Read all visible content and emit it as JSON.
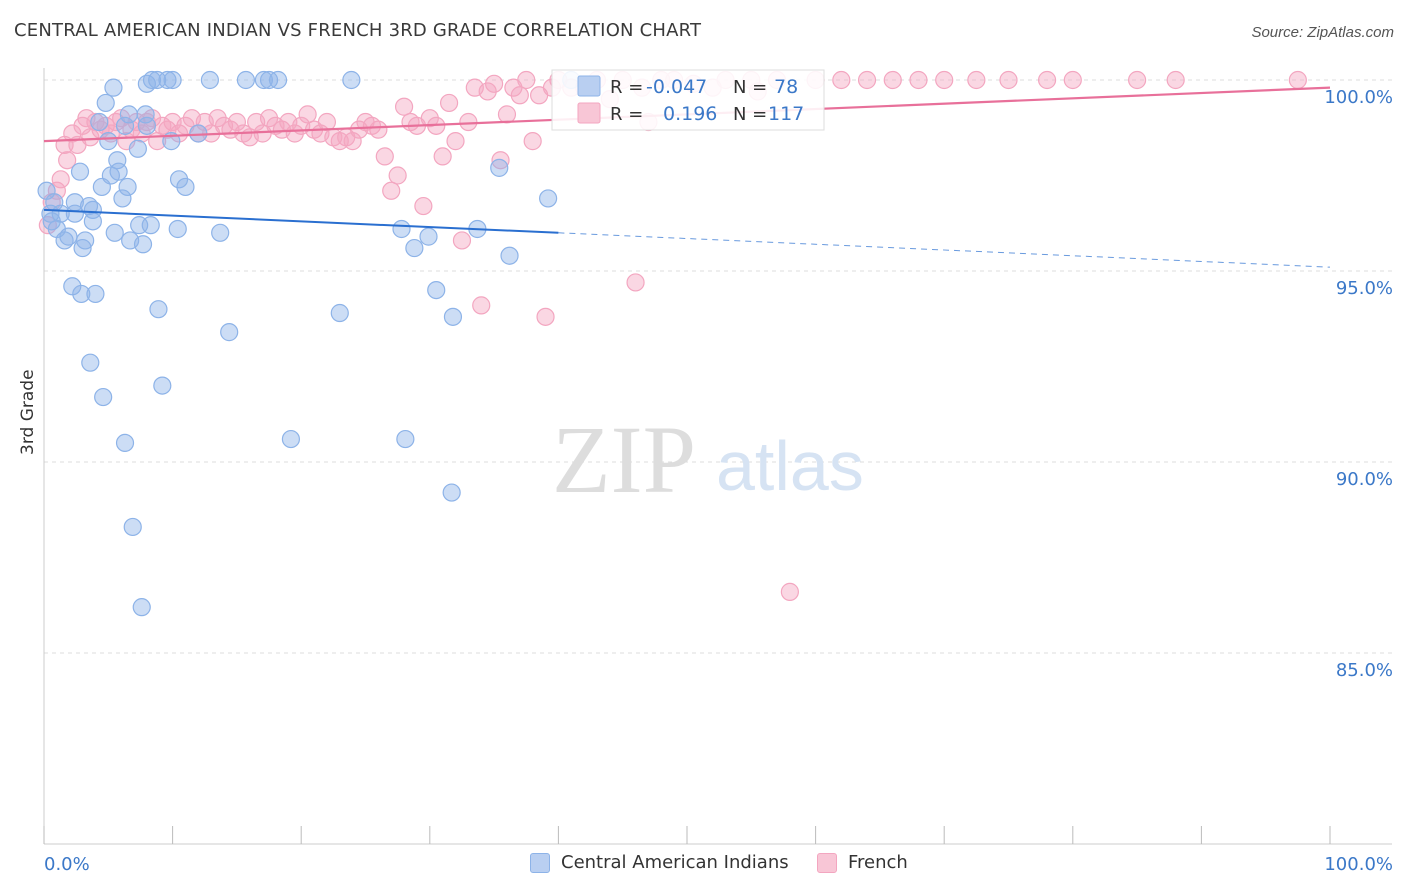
{
  "title": "CENTRAL AMERICAN INDIAN VS FRENCH 3RD GRADE CORRELATION CHART",
  "source": "Source: ZipAtlas.com",
  "watermark": {
    "zip": "ZIP",
    "atlas": "atlas"
  },
  "colors": {
    "blue": "#8db3e8",
    "blue_line": "#2a6fd0",
    "pink": "#f3a6c0",
    "pink_line": "#e8709a",
    "axis_text": "#3b78c8",
    "grid": "#dcdcdc"
  },
  "legend_box": {
    "r_label": "R =",
    "n_label": "N =",
    "blue": {
      "r": "-0.047",
      "n": "78"
    },
    "pink": {
      "r": "0.196",
      "n": "117"
    }
  },
  "bottom_legend": {
    "blue": "Central American Indians",
    "pink": "French"
  },
  "chart_data": {
    "type": "scatter",
    "title": "CENTRAL AMERICAN INDIAN VS FRENCH 3RD GRADE CORRELATION CHART",
    "xlabel": "",
    "ylabel": "3rd Grade",
    "x_tick_labels": [
      "0.0%",
      "100.0%"
    ],
    "y_tick_labels": [
      "100.0%",
      "95.0%",
      "90.0%",
      "85.0%"
    ],
    "y_ticks": [
      100,
      95,
      90,
      85
    ],
    "xlim": [
      0,
      100
    ],
    "ylim": [
      80,
      100.4
    ],
    "grid": true,
    "legend_position": "top-center",
    "series": [
      {
        "name": "Central American Indians",
        "r": -0.047,
        "n": 78,
        "trend": {
          "x0": 0,
          "y0": 96.6,
          "x1": 40,
          "y1": 96.0,
          "dashed_to_x": 100,
          "dashed_y1": 95.1
        },
        "points": [
          [
            0.2,
            97.1
          ],
          [
            0.5,
            96.5
          ],
          [
            0.6,
            96.3
          ],
          [
            0.8,
            96.8
          ],
          [
            1.0,
            96.1
          ],
          [
            1.3,
            96.5
          ],
          [
            1.6,
            95.8
          ],
          [
            1.9,
            95.9
          ],
          [
            2.2,
            94.6
          ],
          [
            2.4,
            96.8
          ],
          [
            2.4,
            96.5
          ],
          [
            2.8,
            97.6
          ],
          [
            2.9,
            94.4
          ],
          [
            3.0,
            95.6
          ],
          [
            3.2,
            95.8
          ],
          [
            3.5,
            96.7
          ],
          [
            3.6,
            92.6
          ],
          [
            3.8,
            96.6
          ],
          [
            3.8,
            96.3
          ],
          [
            4.0,
            94.4
          ],
          [
            4.3,
            98.9
          ],
          [
            4.5,
            97.2
          ],
          [
            4.6,
            91.7
          ],
          [
            4.8,
            99.4
          ],
          [
            5.0,
            98.4
          ],
          [
            5.2,
            97.5
          ],
          [
            5.4,
            99.8
          ],
          [
            5.5,
            96.0
          ],
          [
            5.7,
            97.9
          ],
          [
            5.8,
            97.6
          ],
          [
            6.1,
            96.9
          ],
          [
            6.3,
            90.5
          ],
          [
            6.3,
            98.8
          ],
          [
            6.5,
            97.2
          ],
          [
            6.6,
            99.1
          ],
          [
            6.7,
            95.8
          ],
          [
            6.9,
            88.3
          ],
          [
            7.3,
            98.2
          ],
          [
            7.4,
            96.2
          ],
          [
            7.6,
            86.2
          ],
          [
            7.7,
            95.7
          ],
          [
            7.9,
            99.1
          ],
          [
            8.0,
            98.8
          ],
          [
            8.0,
            99.9
          ],
          [
            8.3,
            96.2
          ],
          [
            8.4,
            100.0
          ],
          [
            8.8,
            100.0
          ],
          [
            8.9,
            94.0
          ],
          [
            9.2,
            92.0
          ],
          [
            9.6,
            100.0
          ],
          [
            9.9,
            98.4
          ],
          [
            10.0,
            100.0
          ],
          [
            10.4,
            96.1
          ],
          [
            10.5,
            97.4
          ],
          [
            11.0,
            97.2
          ],
          [
            12.0,
            98.6
          ],
          [
            12.9,
            100.0
          ],
          [
            13.7,
            96.0
          ],
          [
            14.4,
            93.4
          ],
          [
            15.7,
            100.0
          ],
          [
            17.1,
            100.0
          ],
          [
            17.5,
            100.0
          ],
          [
            18.2,
            100.0
          ],
          [
            19.2,
            90.6
          ],
          [
            23.0,
            93.9
          ],
          [
            23.9,
            100.0
          ],
          [
            27.8,
            96.1
          ],
          [
            28.1,
            90.6
          ],
          [
            28.8,
            95.6
          ],
          [
            29.9,
            95.9
          ],
          [
            30.5,
            94.5
          ],
          [
            31.7,
            89.2
          ],
          [
            31.8,
            93.8
          ],
          [
            33.7,
            96.1
          ],
          [
            35.4,
            97.7
          ],
          [
            36.2,
            95.4
          ],
          [
            39.2,
            96.9
          ],
          [
            41.0,
            100.0
          ]
        ]
      },
      {
        "name": "French",
        "r": 0.196,
        "n": 117,
        "trend": {
          "x0": 0,
          "y0": 98.4,
          "x1": 100,
          "y1": 99.8
        },
        "points": [
          [
            0.3,
            96.2
          ],
          [
            0.6,
            96.8
          ],
          [
            1.0,
            97.1
          ],
          [
            1.3,
            97.4
          ],
          [
            1.6,
            98.3
          ],
          [
            1.8,
            97.9
          ],
          [
            2.2,
            98.6
          ],
          [
            2.6,
            98.3
          ],
          [
            3.0,
            98.8
          ],
          [
            3.3,
            99.0
          ],
          [
            3.6,
            98.5
          ],
          [
            4.0,
            98.9
          ],
          [
            4.4,
            98.7
          ],
          [
            4.8,
            98.8
          ],
          [
            5.2,
            98.6
          ],
          [
            5.6,
            98.9
          ],
          [
            6.0,
            99.0
          ],
          [
            6.4,
            98.4
          ],
          [
            6.8,
            98.7
          ],
          [
            7.2,
            98.9
          ],
          [
            7.6,
            98.6
          ],
          [
            8.0,
            98.9
          ],
          [
            8.4,
            99.0
          ],
          [
            8.8,
            98.4
          ],
          [
            9.2,
            98.8
          ],
          [
            9.6,
            98.7
          ],
          [
            10.0,
            98.9
          ],
          [
            10.5,
            98.6
          ],
          [
            11.0,
            98.8
          ],
          [
            11.5,
            99.0
          ],
          [
            12.0,
            98.6
          ],
          [
            12.5,
            98.9
          ],
          [
            13.0,
            98.6
          ],
          [
            13.5,
            99.0
          ],
          [
            14.0,
            98.8
          ],
          [
            14.5,
            98.7
          ],
          [
            15.0,
            98.9
          ],
          [
            15.5,
            98.6
          ],
          [
            16.0,
            98.5
          ],
          [
            16.5,
            98.9
          ],
          [
            17.0,
            98.6
          ],
          [
            17.5,
            99.0
          ],
          [
            18.0,
            98.8
          ],
          [
            18.5,
            98.7
          ],
          [
            19.0,
            98.9
          ],
          [
            19.5,
            98.6
          ],
          [
            20.0,
            98.8
          ],
          [
            20.5,
            99.1
          ],
          [
            21.0,
            98.7
          ],
          [
            21.5,
            98.6
          ],
          [
            22.0,
            98.9
          ],
          [
            22.5,
            98.5
          ],
          [
            23.0,
            98.4
          ],
          [
            23.5,
            98.5
          ],
          [
            24.0,
            98.4
          ],
          [
            24.5,
            98.7
          ],
          [
            25.0,
            98.9
          ],
          [
            25.5,
            98.8
          ],
          [
            26.0,
            98.7
          ],
          [
            26.5,
            98.0
          ],
          [
            27.0,
            97.1
          ],
          [
            27.5,
            97.5
          ],
          [
            28.0,
            99.3
          ],
          [
            28.5,
            98.9
          ],
          [
            29.0,
            98.8
          ],
          [
            29.5,
            96.7
          ],
          [
            30.0,
            99.0
          ],
          [
            30.5,
            98.8
          ],
          [
            31.0,
            98.0
          ],
          [
            31.5,
            99.4
          ],
          [
            32.0,
            98.4
          ],
          [
            32.5,
            95.8
          ],
          [
            33.0,
            98.9
          ],
          [
            33.5,
            99.8
          ],
          [
            34.0,
            94.1
          ],
          [
            34.5,
            99.7
          ],
          [
            35.0,
            99.9
          ],
          [
            35.5,
            97.9
          ],
          [
            36.0,
            99.1
          ],
          [
            36.5,
            99.8
          ],
          [
            37.0,
            99.6
          ],
          [
            37.5,
            100.0
          ],
          [
            38.0,
            98.4
          ],
          [
            38.5,
            99.6
          ],
          [
            39.0,
            93.8
          ],
          [
            39.5,
            99.8
          ],
          [
            40.0,
            100.0
          ],
          [
            41.0,
            99.8
          ],
          [
            42.0,
            99.8
          ],
          [
            43.0,
            100.0
          ],
          [
            44.0,
            99.5
          ],
          [
            45.0,
            100.0
          ],
          [
            46.5,
            99.8
          ],
          [
            47.0,
            98.9
          ],
          [
            48.0,
            100.0
          ],
          [
            49.0,
            100.0
          ],
          [
            50.5,
            99.9
          ],
          [
            52.0,
            99.8
          ],
          [
            53.0,
            100.0
          ],
          [
            55.0,
            100.0
          ],
          [
            55.5,
            99.7
          ],
          [
            57.0,
            100.0
          ],
          [
            58.0,
            86.6
          ],
          [
            60.0,
            100.0
          ],
          [
            62.0,
            100.0
          ],
          [
            64.0,
            100.0
          ],
          [
            66.0,
            100.0
          ],
          [
            68.0,
            100.0
          ],
          [
            70.0,
            100.0
          ],
          [
            72.5,
            100.0
          ],
          [
            75.0,
            100.0
          ],
          [
            78.0,
            100.0
          ],
          [
            80.0,
            100.0
          ],
          [
            85.0,
            100.0
          ],
          [
            88.0,
            100.0
          ],
          [
            97.5,
            100.0
          ],
          [
            46.0,
            94.7
          ]
        ]
      }
    ]
  }
}
